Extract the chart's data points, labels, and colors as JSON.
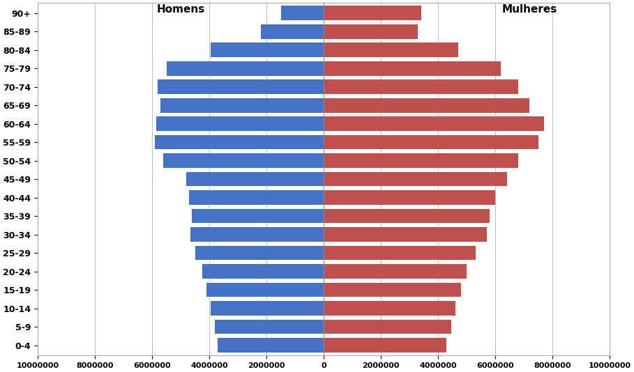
{
  "age_groups": [
    "0-4",
    "5-9",
    "10-14",
    "15-19",
    "20-24",
    "25-29",
    "30-34",
    "35-39",
    "40-44",
    "45-49",
    "50-54",
    "55-59",
    "60-64",
    "65-69",
    "70-74",
    "75-79",
    "80-84",
    "85-89",
    "90+"
  ],
  "homens": [
    3700000,
    3800000,
    3950000,
    4100000,
    4250000,
    4500000,
    4650000,
    4600000,
    4700000,
    4800000,
    5600000,
    5900000,
    5850000,
    5700000,
    5800000,
    5500000,
    3950000,
    2200000,
    1500000
  ],
  "mulheres": [
    4300000,
    4450000,
    4600000,
    4800000,
    5000000,
    5300000,
    5700000,
    5800000,
    6000000,
    6400000,
    6800000,
    7500000,
    7700000,
    7200000,
    6800000,
    6200000,
    4700000,
    3300000,
    3400000
  ],
  "homens_color": "#4472C4",
  "mulheres_color": "#C0504D",
  "background_color": "#FFFFFF",
  "xlim": 10000000,
  "grid_color": "#C0C0C0",
  "label_homens": "Homens",
  "label_mulheres": "Mulheres"
}
